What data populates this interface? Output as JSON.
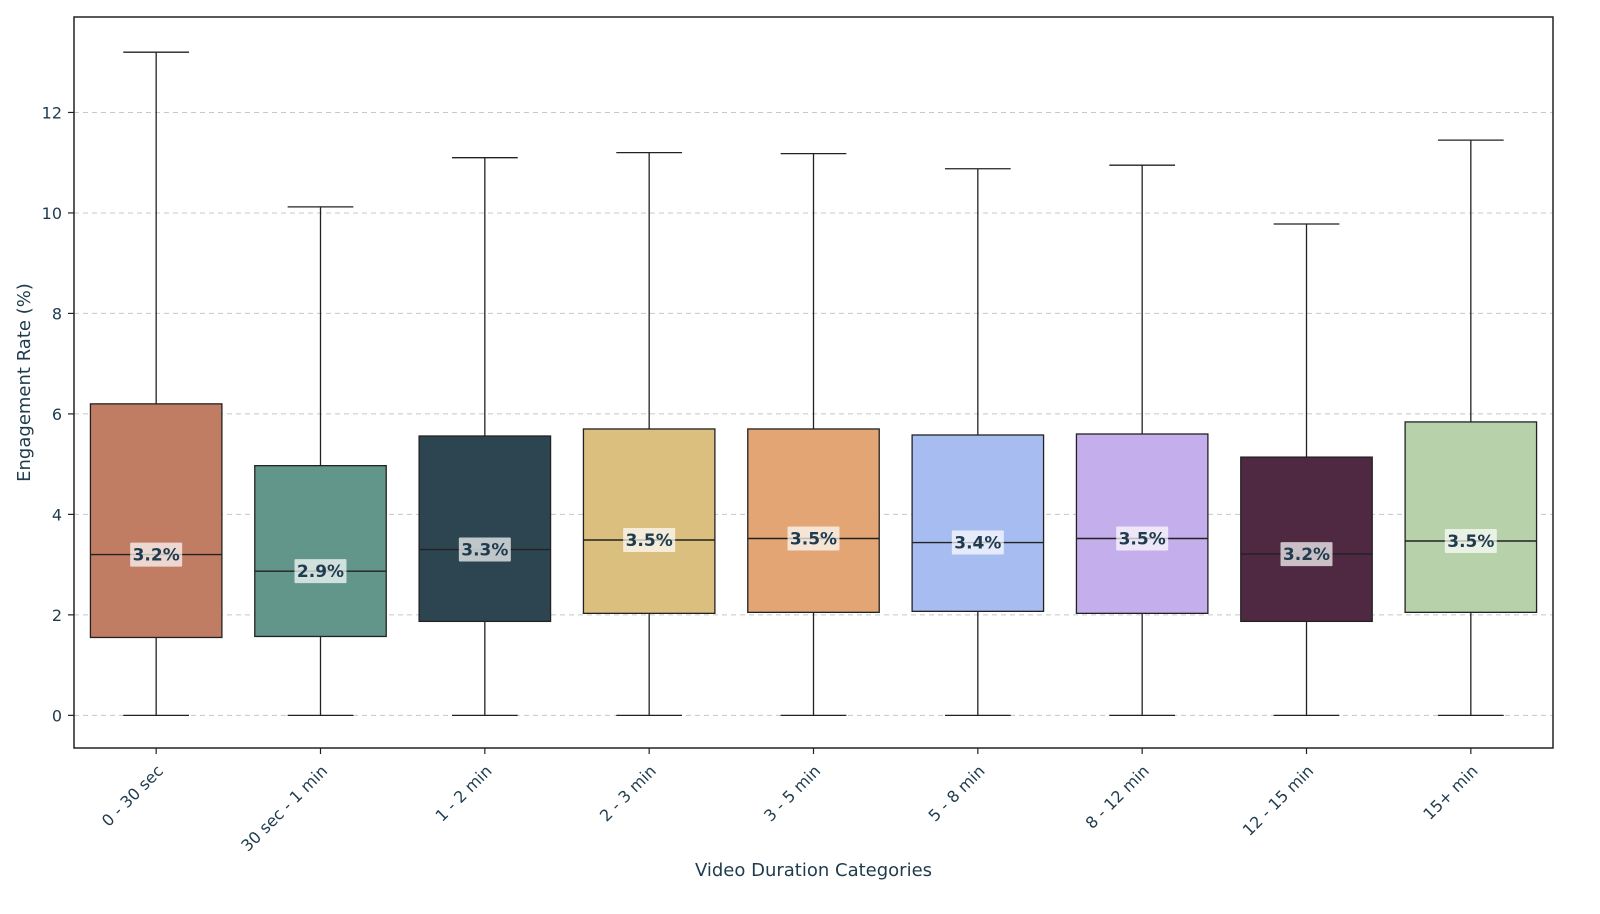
{
  "chart_data": {
    "type": "box",
    "title": "",
    "xlabel": "Video Duration Categories",
    "ylabel": "Engagement Rate (%)",
    "ylim": [
      -0.65,
      13.9
    ],
    "yticks": [
      0,
      2,
      4,
      6,
      8,
      10,
      12
    ],
    "grid": "horizontal dashed",
    "categories": [
      "0 - 30 sec",
      "30 sec - 1 min",
      "1 - 2 min",
      "2 - 3 min",
      "3 - 5 min",
      "5 - 8 min",
      "8 - 12 min",
      "12 - 15 min",
      "15+ min"
    ],
    "boxes": [
      {
        "whisker_low": 0,
        "q1": 1.55,
        "median": 3.2,
        "q3": 6.2,
        "whisker_high": 13.2,
        "label": "3.2%",
        "color": "#c17c64"
      },
      {
        "whisker_low": 0,
        "q1": 1.57,
        "median": 2.87,
        "q3": 4.97,
        "whisker_high": 10.12,
        "label": "2.9%",
        "color": "#62968a"
      },
      {
        "whisker_low": 0,
        "q1": 1.87,
        "median": 3.3,
        "q3": 5.56,
        "whisker_high": 11.1,
        "label": "3.3%",
        "color": "#2d4550"
      },
      {
        "whisker_low": 0,
        "q1": 2.03,
        "median": 3.49,
        "q3": 5.7,
        "whisker_high": 11.2,
        "label": "3.5%",
        "color": "#dabf7e"
      },
      {
        "whisker_low": 0,
        "q1": 2.05,
        "median": 3.52,
        "q3": 5.7,
        "whisker_high": 11.18,
        "label": "3.5%",
        "color": "#e2a573"
      },
      {
        "whisker_low": 0,
        "q1": 2.07,
        "median": 3.44,
        "q3": 5.58,
        "whisker_high": 10.88,
        "label": "3.4%",
        "color": "#a7bcf0"
      },
      {
        "whisker_low": 0,
        "q1": 2.03,
        "median": 3.52,
        "q3": 5.6,
        "whisker_high": 10.95,
        "label": "3.5%",
        "color": "#c4aeec"
      },
      {
        "whisker_low": 0,
        "q1": 1.87,
        "median": 3.21,
        "q3": 5.14,
        "whisker_high": 9.78,
        "label": "3.2%",
        "color": "#4f2842"
      },
      {
        "whisker_low": 0,
        "q1": 2.05,
        "median": 3.47,
        "q3": 5.84,
        "whisker_high": 11.45,
        "label": "3.5%",
        "color": "#b7d2ab"
      }
    ]
  }
}
